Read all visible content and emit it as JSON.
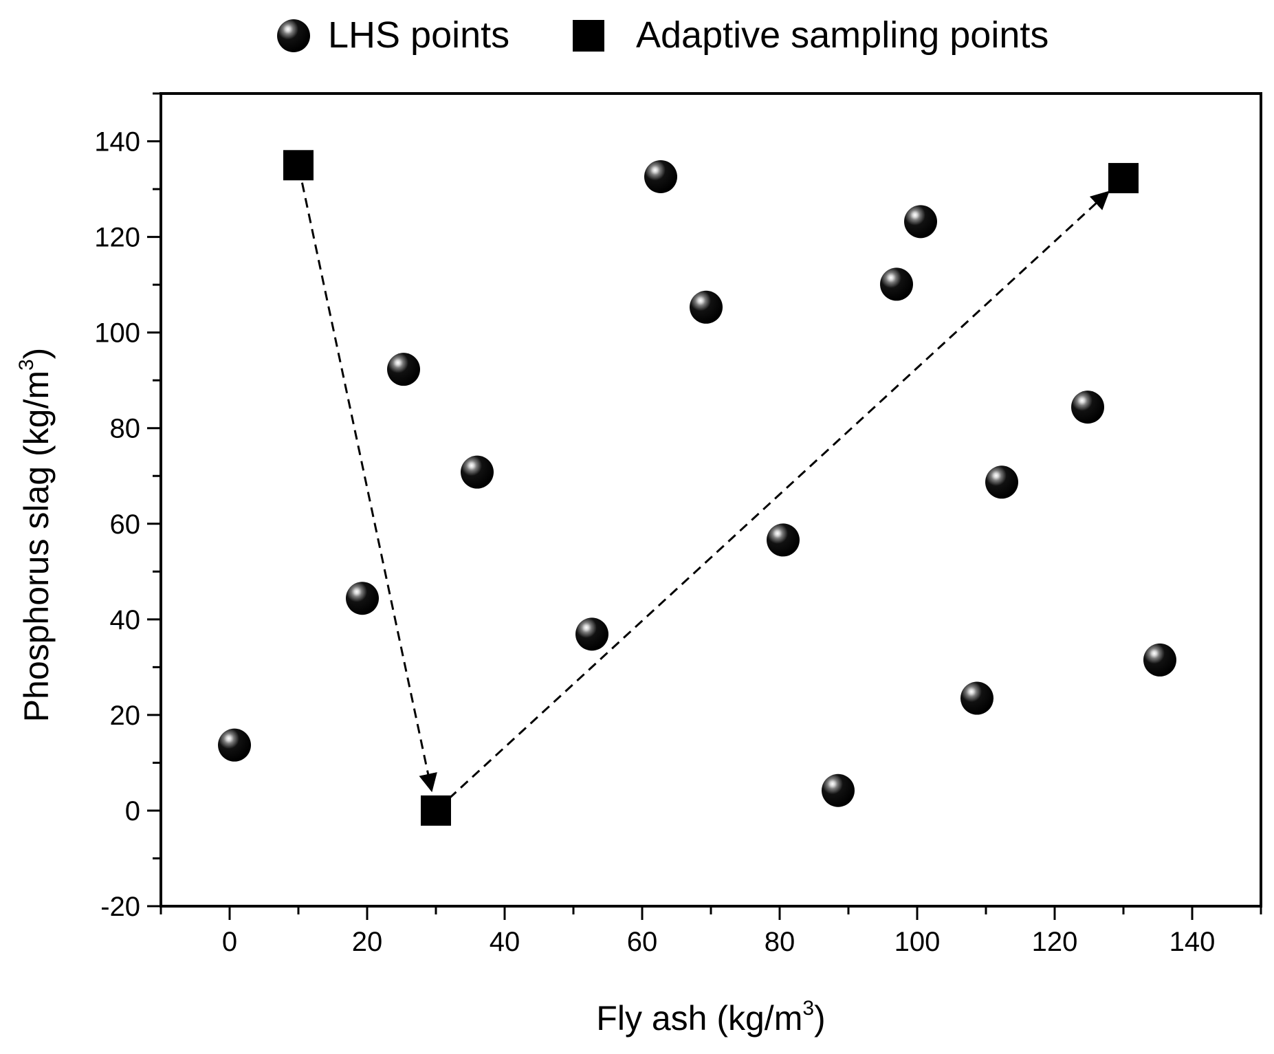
{
  "chart_data": {
    "type": "scatter",
    "title": "",
    "xlabel": "Fly ash (kg/m",
    "xlabel_unit_exponent": "3",
    "xlabel_close": ")",
    "ylabel": "Phosphorus slag (kg/m",
    "ylabel_unit_exponent": "3",
    "ylabel_close": ")",
    "xlim": [
      -10,
      150
    ],
    "ylim": [
      -20,
      150
    ],
    "xticks": [
      0,
      20,
      40,
      60,
      80,
      100,
      120,
      140
    ],
    "yticks": [
      -20,
      0,
      20,
      40,
      60,
      80,
      100,
      120,
      140
    ],
    "xtick_labels": [
      "0",
      "20",
      "40",
      "60",
      "80",
      "100",
      "120",
      "140"
    ],
    "ytick_labels": [
      "-20",
      "0",
      "20",
      "40",
      "60",
      "80",
      "100",
      "120",
      "140"
    ],
    "legend_position": "top-center",
    "series": [
      {
        "name": "LHS points",
        "marker": "sphere",
        "points": [
          {
            "x": 0.7,
            "y": 13.7
          },
          {
            "x": 19.3,
            "y": 44.4
          },
          {
            "x": 25.3,
            "y": 92.3
          },
          {
            "x": 36.0,
            "y": 70.8
          },
          {
            "x": 52.7,
            "y": 36.9
          },
          {
            "x": 62.7,
            "y": 132.6
          },
          {
            "x": 69.3,
            "y": 105.3
          },
          {
            "x": 80.5,
            "y": 56.6
          },
          {
            "x": 88.5,
            "y": 4.2
          },
          {
            "x": 97.0,
            "y": 110.1
          },
          {
            "x": 100.5,
            "y": 123.2
          },
          {
            "x": 108.7,
            "y": 23.5
          },
          {
            "x": 112.3,
            "y": 68.7
          },
          {
            "x": 124.8,
            "y": 84.4
          },
          {
            "x": 135.3,
            "y": 31.5
          }
        ]
      },
      {
        "name": "Adaptive sampling points",
        "marker": "square",
        "points": [
          {
            "x": 10.0,
            "y": 135.0
          },
          {
            "x": 30.0,
            "y": 0.0
          },
          {
            "x": 130.0,
            "y": 132.3
          }
        ]
      }
    ],
    "annotations": [
      {
        "type": "dashed-arrow",
        "from": {
          "x": 10.0,
          "y": 135.0
        },
        "to": {
          "x": 30.0,
          "y": 0.0
        }
      },
      {
        "type": "dashed-arrow",
        "from": {
          "x": 30.0,
          "y": 0.0
        },
        "to": {
          "x": 130.0,
          "y": 132.3
        }
      }
    ]
  },
  "colors": {
    "marker": "#000000",
    "highlight": "#ffffff",
    "axis": "#000000"
  }
}
